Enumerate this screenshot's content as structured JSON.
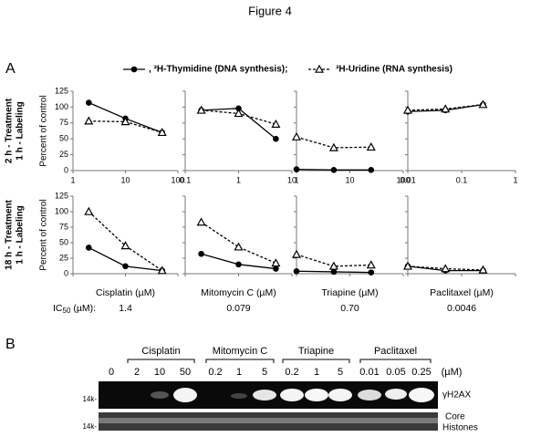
{
  "title": "Figure 4",
  "panel_a": {
    "label": "A",
    "legend": [
      {
        "name": ", ³H-Thymidine (DNA synthesis);",
        "color": "#000000",
        "marker": "circle",
        "dashed": false
      },
      {
        "name": "³H-Uridine (RNA synthesis)",
        "color": "#000000",
        "marker": "triangle",
        "dashed": true
      }
    ],
    "row_labels": [
      [
        "2 h - Treatment",
        "1 h - Labeling"
      ],
      [
        "18 h - Treatment",
        "1 h - Labeling"
      ]
    ],
    "ic50_label": [
      "IC",
      "50",
      " (µM):"
    ]
  },
  "chart_data": [
    {
      "type": "line",
      "xscale": "log",
      "x": [
        2,
        10,
        50
      ],
      "xlim": [
        1,
        100
      ],
      "xticks": [
        1,
        10,
        100
      ],
      "ylim": [
        0,
        125
      ],
      "yticks": [
        0,
        25,
        50,
        75,
        100,
        125
      ],
      "ylabel": "Percent of control",
      "series": [
        {
          "color": "#000000",
          "marker": "circle",
          "dashed": false,
          "values": [
            107,
            82,
            60
          ]
        },
        {
          "color": "#000000",
          "marker": "triangle",
          "dashed": true,
          "values": [
            78,
            77,
            60
          ]
        }
      ]
    },
    {
      "type": "line",
      "xscale": "log",
      "x": [
        0.2,
        1,
        5
      ],
      "xlim": [
        0.1,
        10
      ],
      "xticks": [
        0.1,
        1,
        10
      ],
      "ylim": [
        0,
        125
      ],
      "yticks": [
        0,
        25,
        50,
        75,
        100,
        125
      ],
      "series": [
        {
          "color": "#000000",
          "marker": "circle",
          "dashed": false,
          "values": [
            95,
            98,
            50
          ]
        },
        {
          "color": "#000000",
          "marker": "triangle",
          "dashed": true,
          "values": [
            95,
            90,
            73
          ]
        }
      ]
    },
    {
      "type": "line",
      "xscale": "log",
      "x": [
        1,
        5,
        25
      ],
      "xlim": [
        1,
        100
      ],
      "xticks": [
        1,
        10,
        100
      ],
      "ylim": [
        0,
        125
      ],
      "yticks": [
        0,
        25,
        50,
        75,
        100,
        125
      ],
      "series": [
        {
          "color": "#000000",
          "marker": "circle",
          "dashed": false,
          "values": [
            2,
            1,
            1
          ]
        },
        {
          "color": "#000000",
          "marker": "triangle",
          "dashed": true,
          "values": [
            53,
            36,
            37
          ]
        }
      ]
    },
    {
      "type": "line",
      "xscale": "log",
      "x": [
        0.01,
        0.05,
        0.25
      ],
      "xlim": [
        0.01,
        1
      ],
      "xticks": [
        0.01,
        0.1,
        1
      ],
      "ylim": [
        0,
        125
      ],
      "yticks": [
        0,
        25,
        50,
        75,
        100,
        125
      ],
      "series": [
        {
          "color": "#000000",
          "marker": "circle",
          "dashed": false,
          "values": [
            93,
            95,
            104
          ]
        },
        {
          "color": "#000000",
          "marker": "triangle",
          "dashed": true,
          "values": [
            95,
            97,
            104
          ]
        }
      ]
    },
    {
      "type": "line",
      "xscale": "log",
      "x": [
        2,
        10,
        50
      ],
      "xlim": [
        1,
        100
      ],
      "xticks": [
        1,
        10,
        100
      ],
      "ylim": [
        0,
        125
      ],
      "yticks": [
        0,
        25,
        50,
        75,
        100,
        125
      ],
      "ylabel": "Percent of control",
      "xlabel": "Cisplatin (µM)",
      "ic50": "1.4",
      "series": [
        {
          "color": "#000000",
          "marker": "circle",
          "dashed": false,
          "values": [
            42,
            12,
            5
          ]
        },
        {
          "color": "#000000",
          "marker": "triangle",
          "dashed": true,
          "values": [
            100,
            45,
            5
          ]
        }
      ]
    },
    {
      "type": "line",
      "xscale": "log",
      "x": [
        0.2,
        1,
        5
      ],
      "xlim": [
        0.1,
        10
      ],
      "xticks": [
        0.1,
        1,
        10
      ],
      "ylim": [
        0,
        125
      ],
      "yticks": [
        0,
        25,
        50,
        75,
        100,
        125
      ],
      "xlabel": "Mitomycin C (µM)",
      "ic50": "0.079",
      "series": [
        {
          "color": "#000000",
          "marker": "circle",
          "dashed": false,
          "values": [
            32,
            15,
            8
          ]
        },
        {
          "color": "#000000",
          "marker": "triangle",
          "dashed": true,
          "values": [
            83,
            43,
            17
          ]
        }
      ]
    },
    {
      "type": "line",
      "xscale": "log",
      "x": [
        1,
        5,
        25
      ],
      "xlim": [
        1,
        100
      ],
      "xticks": [
        1,
        10,
        100
      ],
      "ylim": [
        0,
        125
      ],
      "yticks": [
        0,
        25,
        50,
        75,
        100,
        125
      ],
      "xlabel": "Triapine (µM)",
      "ic50": "0.70",
      "series": [
        {
          "color": "#000000",
          "marker": "circle",
          "dashed": false,
          "values": [
            4,
            3,
            2
          ]
        },
        {
          "color": "#000000",
          "marker": "triangle",
          "dashed": true,
          "values": [
            31,
            12,
            14
          ]
        }
      ]
    },
    {
      "type": "line",
      "xscale": "log",
      "x": [
        0.01,
        0.05,
        0.25
      ],
      "xlim": [
        0.01,
        1
      ],
      "xticks": [
        0.01,
        0.1,
        1
      ],
      "ylim": [
        0,
        125
      ],
      "yticks": [
        0,
        25,
        50,
        75,
        100,
        125
      ],
      "xlabel": "Paclitaxel (µM)",
      "ic50": "0.0046",
      "series": [
        {
          "color": "#000000",
          "marker": "circle",
          "dashed": false,
          "values": [
            12,
            5,
            5
          ]
        },
        {
          "color": "#000000",
          "marker": "triangle",
          "dashed": true,
          "values": [
            12,
            8,
            6
          ]
        }
      ]
    }
  ],
  "panel_b": {
    "label": "B",
    "groups": [
      "Cisplatin",
      "Mitomycin C",
      "Triapine",
      "Paclitaxel"
    ],
    "lanes": [
      "0",
      "2",
      "10",
      "50",
      "0.2",
      "1",
      "5",
      "0.2",
      "1",
      "5",
      "0.01",
      "0.05",
      "0.25"
    ],
    "unit": "(µM)",
    "marker": "14k-",
    "rows": [
      "γH2AX",
      [
        "Core",
        "Histones"
      ]
    ]
  }
}
